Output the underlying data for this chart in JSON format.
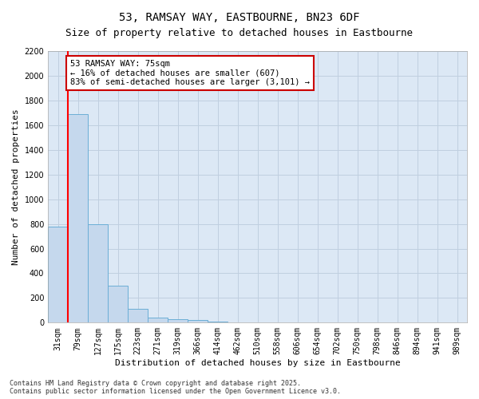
{
  "title_line1": "53, RAMSAY WAY, EASTBOURNE, BN23 6DF",
  "title_line2": "Size of property relative to detached houses in Eastbourne",
  "xlabel": "Distribution of detached houses by size in Eastbourne",
  "ylabel": "Number of detached properties",
  "annotation_line1": "53 RAMSAY WAY: 75sqm",
  "annotation_line2": "← 16% of detached houses are smaller (607)",
  "annotation_line3": "83% of semi-detached houses are larger (3,101) →",
  "categories": [
    "31sqm",
    "79sqm",
    "127sqm",
    "175sqm",
    "223sqm",
    "271sqm",
    "319sqm",
    "366sqm",
    "414sqm",
    "462sqm",
    "510sqm",
    "558sqm",
    "606sqm",
    "654sqm",
    "702sqm",
    "750sqm",
    "798sqm",
    "846sqm",
    "894sqm",
    "941sqm",
    "989sqm"
  ],
  "values": [
    775,
    1690,
    800,
    300,
    110,
    40,
    30,
    20,
    10,
    5,
    2,
    0,
    0,
    0,
    0,
    0,
    0,
    0,
    0,
    0,
    0
  ],
  "bar_color": "#c5d8ed",
  "bar_edge_color": "#6baed6",
  "red_line_x": 0.5,
  "ylim": [
    0,
    2200
  ],
  "yticks": [
    0,
    200,
    400,
    600,
    800,
    1000,
    1200,
    1400,
    1600,
    1800,
    2000,
    2200
  ],
  "grid_color": "#c0cfe0",
  "background_color": "#dce8f5",
  "annotation_box_color": "#ffffff",
  "annotation_box_edge": "#cc0000",
  "title_fontsize": 10,
  "subtitle_fontsize": 9,
  "label_fontsize": 8,
  "tick_fontsize": 7,
  "ann_fontsize": 7.5,
  "footer_text": "Contains HM Land Registry data © Crown copyright and database right 2025.\nContains public sector information licensed under the Open Government Licence v3.0."
}
